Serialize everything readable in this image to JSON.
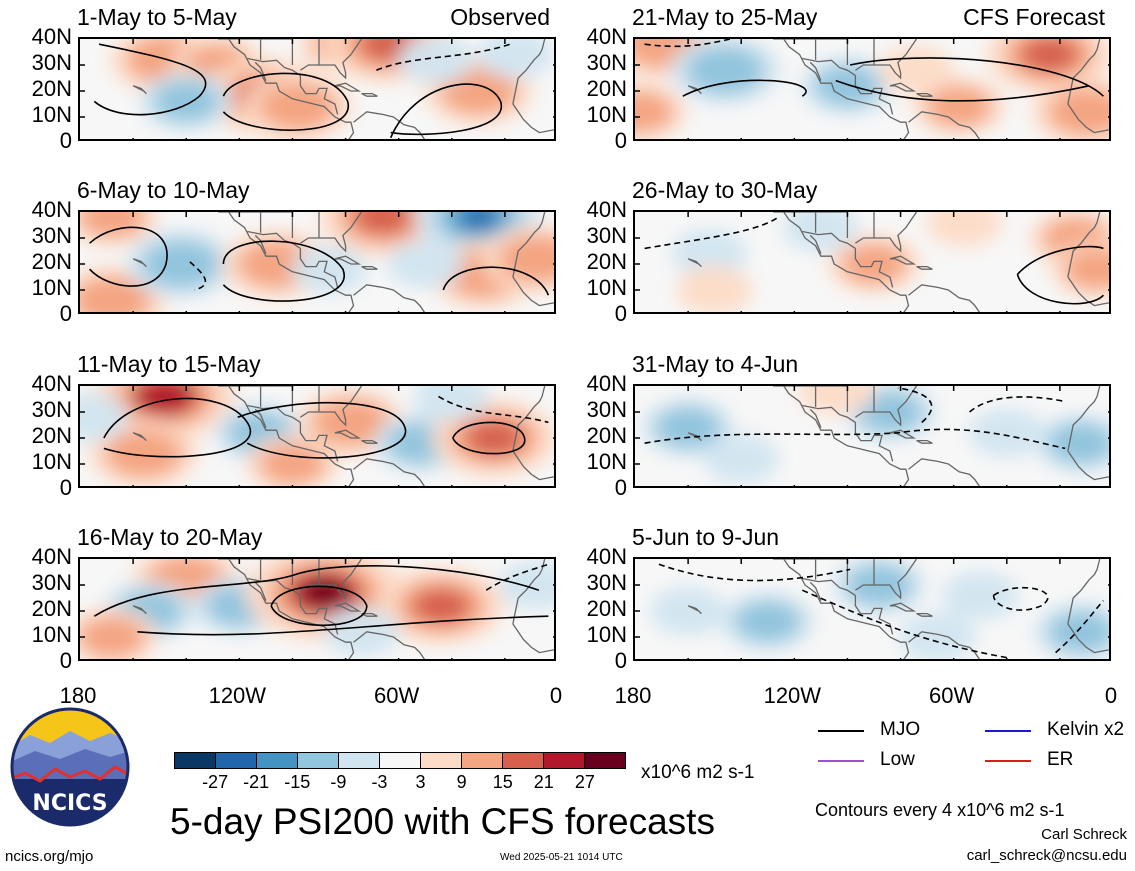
{
  "chart_data": {
    "type": "heatmap",
    "title": "5-day PSI200 with CFS forecasts",
    "variable": "PSI200 anomaly",
    "units": "x10^6 m2 s-1",
    "contour_note": "Contours every 4 x10^6 m2 s-1",
    "x_tick_labels": [
      "180",
      "120W",
      "60W",
      "0"
    ],
    "y_tick_labels": [
      "40N",
      "30N",
      "20N",
      "10N",
      "0"
    ],
    "xlim": [
      -180,
      0
    ],
    "ylim": [
      0,
      40
    ],
    "colorbar": {
      "labels": [
        "-27",
        "-21",
        "-15",
        "-9",
        "-3",
        "3",
        "9",
        "15",
        "21",
        "27"
      ],
      "colors": [
        "#0a3764",
        "#2166ac",
        "#4393c3",
        "#92c5de",
        "#d1e5f0",
        "#f7f7f7",
        "#fddbc7",
        "#f4a582",
        "#d6604d",
        "#b2182b",
        "#67001f"
      ]
    },
    "legend": [
      {
        "label": "MJO",
        "color": "#000000"
      },
      {
        "label": "Kelvin x2",
        "color": "#1a1acc"
      },
      {
        "label": "Low",
        "color": "#9b4fd1"
      },
      {
        "label": "ER",
        "color": "#d62020"
      }
    ],
    "panels": [
      {
        "title": "1-May to 5-May",
        "column": "Observed",
        "corner_label": "Observed",
        "anomalies": [
          {
            "lon": -148,
            "lat": 32,
            "value": 15
          },
          {
            "lon": -128,
            "lat": 30,
            "value": 9
          },
          {
            "lon": -110,
            "lat": 18,
            "value": 21
          },
          {
            "lon": -98,
            "lat": 14,
            "value": 15
          },
          {
            "lon": -80,
            "lat": 38,
            "value": 9
          },
          {
            "lon": -64,
            "lat": 38,
            "value": 21
          },
          {
            "lon": -30,
            "lat": 20,
            "value": 15
          },
          {
            "lon": -140,
            "lat": 16,
            "value": -9
          },
          {
            "lon": -16,
            "lat": 34,
            "value": -3
          },
          {
            "lon": -46,
            "lat": 32,
            "value": -3
          }
        ]
      },
      {
        "title": "6-May to 10-May",
        "column": "Observed",
        "corner_label": "",
        "anomalies": [
          {
            "lon": -168,
            "lat": 38,
            "value": 9
          },
          {
            "lon": -168,
            "lat": 6,
            "value": 15
          },
          {
            "lon": -142,
            "lat": 20,
            "value": -15
          },
          {
            "lon": -106,
            "lat": 20,
            "value": 15
          },
          {
            "lon": -66,
            "lat": 38,
            "value": 21
          },
          {
            "lon": -30,
            "lat": 38,
            "value": -21
          },
          {
            "lon": -28,
            "lat": 16,
            "value": 15
          },
          {
            "lon": -8,
            "lat": 22,
            "value": 15
          },
          {
            "lon": -86,
            "lat": 18,
            "value": -3
          },
          {
            "lon": -50,
            "lat": 20,
            "value": -3
          }
        ]
      },
      {
        "title": "11-May to 15-May",
        "column": "Observed",
        "corner_label": "",
        "anomalies": [
          {
            "lon": -148,
            "lat": 36,
            "value": 27
          },
          {
            "lon": -156,
            "lat": 14,
            "value": 15
          },
          {
            "lon": -176,
            "lat": 28,
            "value": -3
          },
          {
            "lon": -112,
            "lat": 22,
            "value": -9
          },
          {
            "lon": -78,
            "lat": 26,
            "value": 15
          },
          {
            "lon": -100,
            "lat": 10,
            "value": 9
          },
          {
            "lon": -52,
            "lat": 18,
            "value": -9
          },
          {
            "lon": -24,
            "lat": 20,
            "value": 21
          },
          {
            "lon": -40,
            "lat": 36,
            "value": -3
          }
        ]
      },
      {
        "title": "16-May to 20-May",
        "column": "Observed",
        "corner_label": "",
        "anomalies": [
          {
            "lon": -140,
            "lat": 32,
            "value": 15
          },
          {
            "lon": -154,
            "lat": 20,
            "value": -9
          },
          {
            "lon": -120,
            "lat": 22,
            "value": -9
          },
          {
            "lon": -88,
            "lat": 27,
            "value": 33
          },
          {
            "lon": -44,
            "lat": 22,
            "value": 21
          },
          {
            "lon": -168,
            "lat": 10,
            "value": 9
          },
          {
            "lon": -8,
            "lat": 30,
            "value": -3
          },
          {
            "lon": -74,
            "lat": 12,
            "value": -3
          }
        ]
      },
      {
        "title": "21-May to 25-May",
        "column": "CFS Forecast",
        "corner_label": "CFS Forecast",
        "anomalies": [
          {
            "lon": -170,
            "lat": 38,
            "value": 15
          },
          {
            "lon": -146,
            "lat": 28,
            "value": -15
          },
          {
            "lon": -178,
            "lat": 12,
            "value": 9
          },
          {
            "lon": -100,
            "lat": 22,
            "value": -9
          },
          {
            "lon": -24,
            "lat": 34,
            "value": 21
          },
          {
            "lon": -10,
            "lat": 12,
            "value": 15
          },
          {
            "lon": -58,
            "lat": 14,
            "value": 9
          },
          {
            "lon": -74,
            "lat": 28,
            "value": 3
          }
        ]
      },
      {
        "title": "26-May to 30-May",
        "column": "CFS Forecast",
        "corner_label": "",
        "anomalies": [
          {
            "lon": -152,
            "lat": 24,
            "value": -3
          },
          {
            "lon": -150,
            "lat": 10,
            "value": 3
          },
          {
            "lon": -90,
            "lat": 20,
            "value": 9
          },
          {
            "lon": -56,
            "lat": 36,
            "value": 3
          },
          {
            "lon": -14,
            "lat": 30,
            "value": 9
          },
          {
            "lon": -6,
            "lat": 18,
            "value": 9
          },
          {
            "lon": -110,
            "lat": 34,
            "value": -3
          }
        ]
      },
      {
        "title": "31-May to 4-Jun",
        "column": "CFS Forecast",
        "corner_label": "",
        "anomalies": [
          {
            "lon": -160,
            "lat": 24,
            "value": -9
          },
          {
            "lon": -140,
            "lat": 12,
            "value": -3
          },
          {
            "lon": -84,
            "lat": 30,
            "value": -9
          },
          {
            "lon": -40,
            "lat": 22,
            "value": -3
          },
          {
            "lon": -12,
            "lat": 18,
            "value": -9
          },
          {
            "lon": -104,
            "lat": 38,
            "value": 3
          }
        ]
      },
      {
        "title": "5-Jun to 9-Jun",
        "column": "CFS Forecast",
        "corner_label": "",
        "anomalies": [
          {
            "lon": -160,
            "lat": 20,
            "value": -3
          },
          {
            "lon": -130,
            "lat": 16,
            "value": -9
          },
          {
            "lon": -88,
            "lat": 30,
            "value": -9
          },
          {
            "lon": -50,
            "lat": 26,
            "value": -3
          },
          {
            "lon": -12,
            "lat": 12,
            "value": -9
          },
          {
            "lon": -66,
            "lat": 10,
            "value": -3
          }
        ]
      }
    ]
  },
  "branding": {
    "logo_text": "NCICS",
    "site": "ncics.org/mjo",
    "timestamp": "Wed 2025-05-21 1014 UTC",
    "author": "Carl Schreck",
    "email": "carl_schreck@ncsu.edu"
  }
}
